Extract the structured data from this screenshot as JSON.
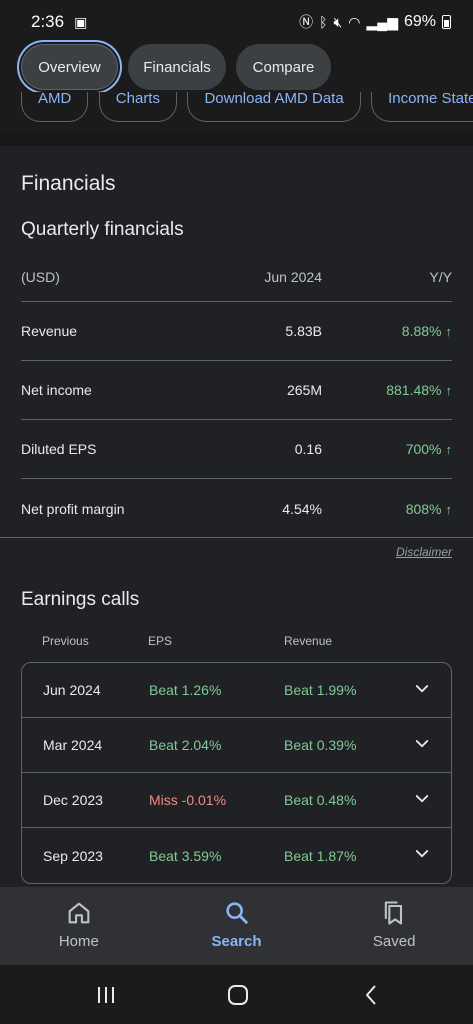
{
  "status": {
    "time": "2:36",
    "battery": "69%"
  },
  "tabs": [
    {
      "label": "Overview"
    },
    {
      "label": "Financials"
    },
    {
      "label": "Compare"
    }
  ],
  "chips": [
    "AMD",
    "Charts",
    "Download AMD Data",
    "Income State"
  ],
  "financials": {
    "title": "Financials",
    "subtitle": "Quarterly financials",
    "header": {
      "currency": "(USD)",
      "period": "Jun 2024",
      "change": "Y/Y"
    },
    "rows": [
      {
        "label": "Revenue",
        "value": "5.83B",
        "change": "8.88%"
      },
      {
        "label": "Net income",
        "value": "265M",
        "change": "881.48%"
      },
      {
        "label": "Diluted EPS",
        "value": "0.16",
        "change": "700%"
      },
      {
        "label": "Net profit margin",
        "value": "4.54%",
        "change": "808%"
      }
    ],
    "disclaimer": "Disclaimer"
  },
  "earnings": {
    "title": "Earnings calls",
    "header": {
      "previous": "Previous",
      "eps": "EPS",
      "revenue": "Revenue"
    },
    "rows": [
      {
        "quarter": "Jun 2024",
        "eps": "Beat 1.26%",
        "revenue": "Beat 1.99%"
      },
      {
        "quarter": "Mar 2024",
        "eps": "Beat 2.04%",
        "revenue": "Beat 0.39%"
      },
      {
        "quarter": "Dec 2023",
        "eps": "Miss -0.01%",
        "revenue": "Beat 0.48%"
      },
      {
        "quarter": "Sep 2023",
        "eps": "Beat 3.59%",
        "revenue": "Beat 1.87%"
      }
    ]
  },
  "bottom_nav": [
    {
      "label": "Home",
      "icon": "home-icon"
    },
    {
      "label": "Search",
      "icon": "search-icon"
    },
    {
      "label": "Saved",
      "icon": "saved-icon"
    }
  ],
  "colors": {
    "accent": "#8ab4f8",
    "positive": "#81c995",
    "negative": "#f28b82",
    "background": "#202124"
  }
}
